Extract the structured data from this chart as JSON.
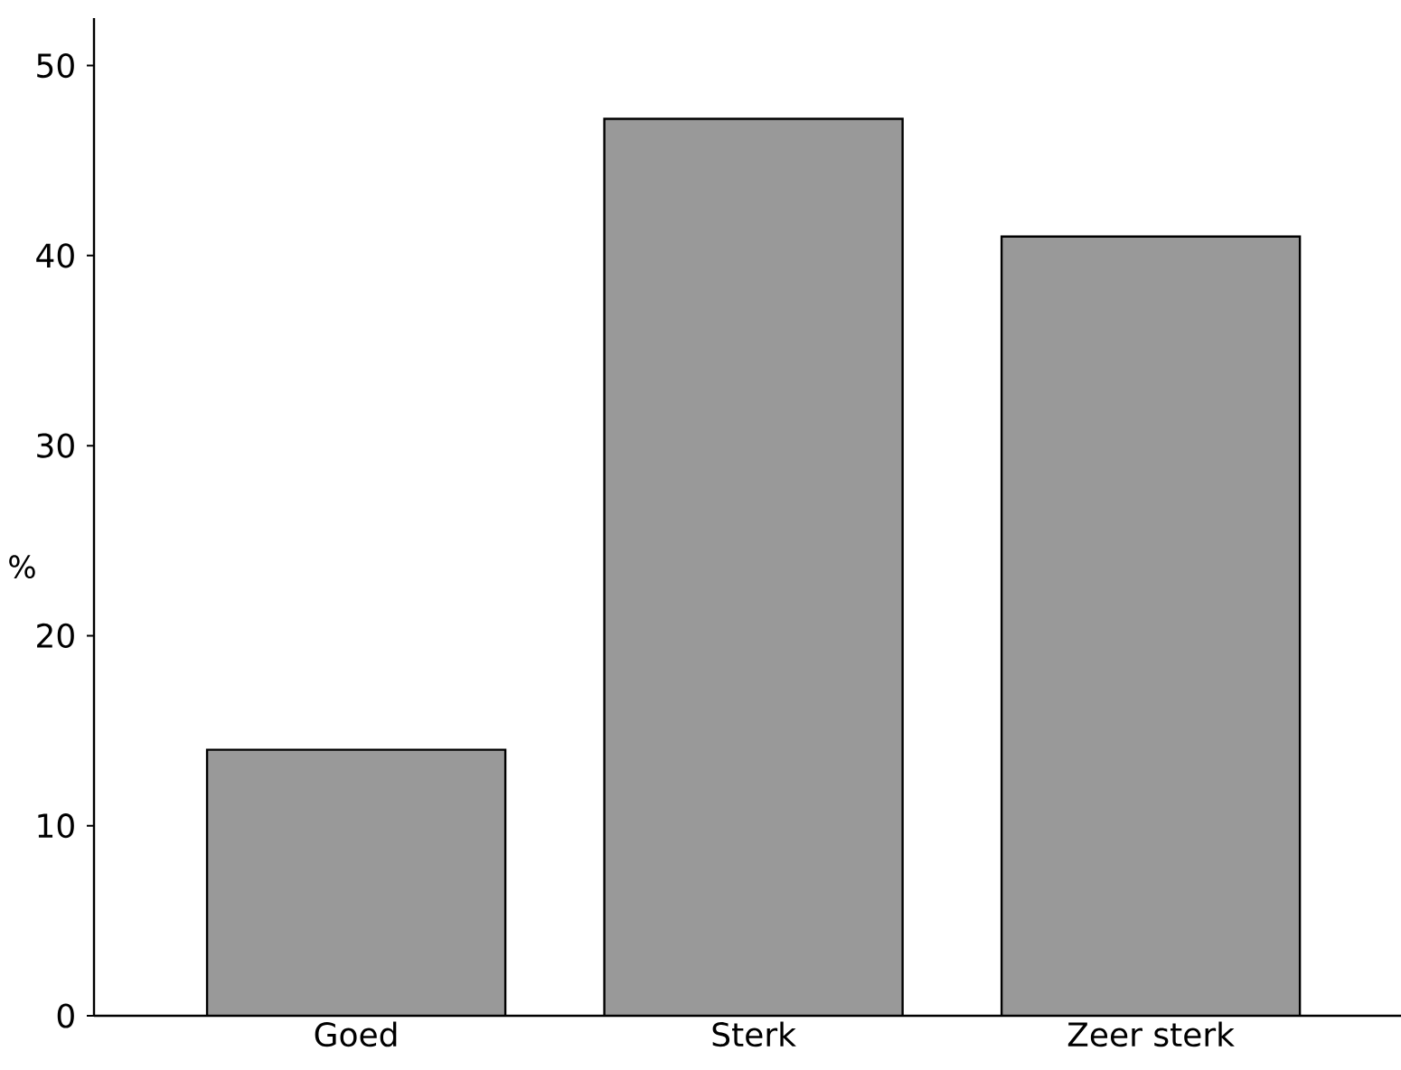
{
  "chart_data": {
    "type": "bar",
    "ylabel": "%",
    "categories": [
      "Goed",
      "Sterk",
      "Zeer sterk"
    ],
    "values": [
      14,
      47.2,
      41
    ],
    "color": "#999999",
    "ylim": [
      0,
      52.5
    ],
    "yticks": [
      0,
      10,
      20,
      30,
      40,
      50
    ],
    "grid": false
  }
}
